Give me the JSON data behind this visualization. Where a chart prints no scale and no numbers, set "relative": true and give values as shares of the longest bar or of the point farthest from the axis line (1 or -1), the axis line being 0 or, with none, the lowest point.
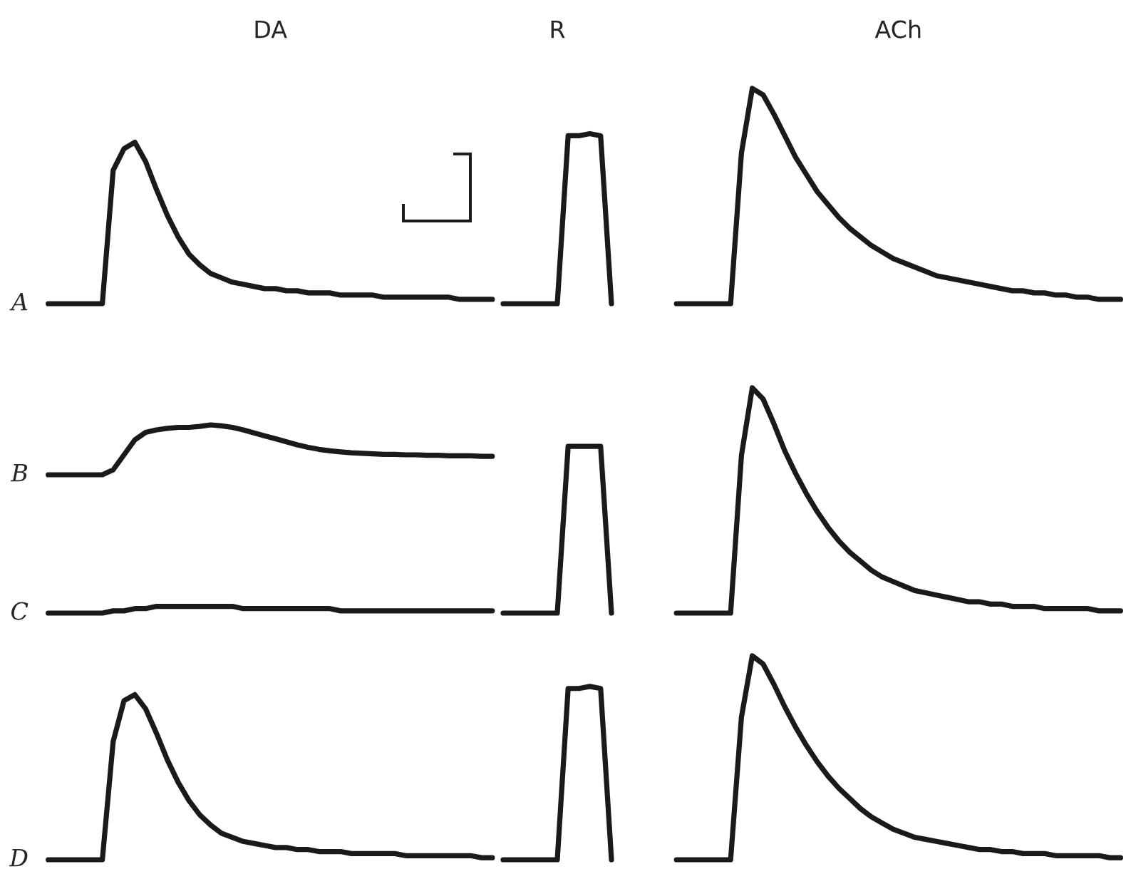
{
  "chart_data": [
    {
      "type": "line",
      "relative": true,
      "title": "A",
      "annotations": [
        "DA",
        "R",
        "ACh"
      ],
      "categories": [
        null,
        null,
        null,
        null,
        null,
        null,
        null,
        null,
        null,
        null,
        null,
        null,
        null,
        null,
        null,
        null,
        null,
        null,
        null,
        null,
        null,
        null,
        null,
        null,
        null,
        null,
        null,
        null,
        null,
        null,
        null,
        null,
        null,
        null,
        null,
        null,
        null,
        null,
        null,
        null,
        null,
        null,
        null,
        null,
        null,
        null,
        null,
        null,
        null,
        null,
        null,
        null,
        null,
        null,
        null,
        null,
        null,
        null,
        null,
        null,
        null,
        null,
        null,
        null,
        null,
        null,
        null,
        null,
        null,
        null,
        null,
        null,
        null,
        null,
        null,
        null,
        null,
        null,
        null,
        null,
        null,
        null,
        null,
        null,
        null,
        null,
        null,
        null,
        null,
        null,
        null,
        null,
        null,
        null,
        null,
        null,
        null,
        null,
        null,
        null
      ],
      "series": [
        {
          "color": "#1a1a1a",
          "values": [
            0,
            0,
            0,
            0,
            0,
            0,
            0.62,
            0.72,
            0.75,
            0.66,
            0.53,
            0.41,
            0.31,
            0.23,
            0.18,
            0.14,
            0.12,
            0.1,
            0.09,
            0.08,
            0.07,
            0.07,
            0.06,
            0.06,
            0.05,
            0.05,
            0.05,
            0.04,
            0.04,
            0.04,
            0.04,
            0.03,
            0.03,
            0.03,
            0.03,
            0.03,
            0.03,
            0.03,
            0.02,
            0.02,
            0.02,
            0.02,
            null,
            null,
            null,
            null,
            null,
            null,
            null,
            null,
            null,
            null,
            null,
            null,
            null,
            null,
            null,
            null,
            null,
            null,
            null,
            null,
            null,
            null,
            null,
            null,
            null,
            null,
            null,
            null,
            null,
            null,
            null,
            null,
            null,
            null,
            null,
            null,
            null,
            null,
            null,
            null,
            null,
            null,
            null,
            null,
            null,
            null,
            null,
            null,
            null,
            null,
            null,
            null,
            null,
            null,
            null,
            null,
            null,
            null
          ]
        },
        {
          "color": "#1a1a1a",
          "values": [
            null,
            null,
            null,
            null,
            null,
            null,
            null,
            null,
            null,
            null,
            null,
            null,
            null,
            null,
            null,
            null,
            null,
            null,
            null,
            null,
            null,
            null,
            null,
            null,
            null,
            null,
            null,
            null,
            null,
            null,
            null,
            null,
            null,
            null,
            null,
            null,
            null,
            null,
            null,
            null,
            null,
            null,
            0,
            0,
            0,
            0,
            0,
            0,
            0.78,
            0.78,
            0.79,
            0.78,
            0,
            null,
            null,
            null,
            null,
            null,
            null,
            null,
            null,
            null,
            null,
            null,
            null,
            null,
            null,
            null,
            null,
            null,
            null,
            null,
            null,
            null,
            null,
            null,
            null,
            null,
            null,
            null,
            null,
            null,
            null,
            null,
            null,
            null,
            null,
            null,
            null,
            null,
            null,
            null,
            null,
            null,
            null,
            null,
            null,
            null,
            null,
            null
          ]
        },
        {
          "color": "#1a1a1a",
          "values": [
            null,
            null,
            null,
            null,
            null,
            null,
            null,
            null,
            null,
            null,
            null,
            null,
            null,
            null,
            null,
            null,
            null,
            null,
            null,
            null,
            null,
            null,
            null,
            null,
            null,
            null,
            null,
            null,
            null,
            null,
            null,
            null,
            null,
            null,
            null,
            null,
            null,
            null,
            null,
            null,
            null,
            null,
            null,
            null,
            null,
            null,
            null,
            null,
            null,
            null,
            null,
            null,
            null,
            null,
            null,
            null,
            null,
            null,
            0,
            0,
            0,
            0,
            0,
            0,
            0.7,
            1.0,
            0.97,
            0.88,
            0.78,
            0.68,
            0.6,
            0.52,
            0.46,
            0.4,
            0.35,
            0.31,
            0.27,
            0.24,
            0.21,
            0.19,
            0.17,
            0.15,
            0.13,
            0.12,
            0.11,
            0.1,
            0.09,
            0.08,
            0.07,
            0.06,
            0.06,
            0.05,
            0.05,
            0.04,
            0.04,
            0.03,
            0.03,
            0.02,
            0.02,
            0.02
          ]
        }
      ]
    },
    {
      "type": "line",
      "relative": true,
      "title": "B",
      "categories": [
        null,
        null,
        null,
        null,
        null,
        null,
        null,
        null,
        null,
        null,
        null,
        null,
        null,
        null,
        null,
        null,
        null,
        null,
        null,
        null,
        null,
        null,
        null,
        null,
        null,
        null,
        null,
        null,
        null,
        null,
        null,
        null,
        null,
        null,
        null,
        null,
        null,
        null,
        null,
        null,
        null,
        null,
        null,
        null,
        null,
        null,
        null,
        null,
        null,
        null,
        null,
        null,
        null,
        null,
        null,
        null,
        null,
        null,
        null,
        null,
        null,
        null,
        null,
        null,
        null,
        null,
        null,
        null,
        null,
        null,
        null,
        null,
        null,
        null,
        null,
        null,
        null,
        null,
        null,
        null,
        null,
        null,
        null,
        null,
        null,
        null,
        null,
        null,
        null,
        null,
        null,
        null,
        null,
        null,
        null,
        null,
        null,
        null,
        null,
        null
      ],
      "series": [
        {
          "color": "#1a1a1a",
          "values": [
            0,
            0,
            0,
            0,
            0,
            0,
            0.1,
            0.4,
            0.7,
            0.85,
            0.9,
            0.93,
            0.95,
            0.95,
            0.97,
            1.0,
            0.98,
            0.95,
            0.9,
            0.84,
            0.78,
            0.72,
            0.66,
            0.6,
            0.55,
            0.51,
            0.48,
            0.46,
            0.44,
            0.43,
            0.42,
            0.41,
            0.41,
            0.4,
            0.4,
            0.39,
            0.39,
            0.38,
            0.38,
            0.38,
            0.37,
            0.37,
            null,
            null,
            null,
            null,
            null,
            null,
            null,
            null,
            null,
            null,
            null,
            null,
            null,
            null,
            null,
            null,
            null,
            null,
            null,
            null,
            null,
            null,
            null,
            null,
            null,
            null,
            null,
            null,
            null,
            null,
            null,
            null,
            null,
            null,
            null,
            null,
            null,
            null,
            null,
            null,
            null,
            null,
            null,
            null,
            null,
            null,
            null,
            null,
            null,
            null,
            null,
            null,
            null,
            null,
            null,
            null,
            null,
            null
          ]
        }
      ]
    },
    {
      "type": "line",
      "relative": true,
      "title": "C",
      "categories": [
        null,
        null,
        null,
        null,
        null,
        null,
        null,
        null,
        null,
        null,
        null,
        null,
        null,
        null,
        null,
        null,
        null,
        null,
        null,
        null,
        null,
        null,
        null,
        null,
        null,
        null,
        null,
        null,
        null,
        null,
        null,
        null,
        null,
        null,
        null,
        null,
        null,
        null,
        null,
        null,
        null,
        null,
        null,
        null,
        null,
        null,
        null,
        null,
        null,
        null,
        null,
        null,
        null,
        null,
        null,
        null,
        null,
        null,
        null,
        null,
        null,
        null,
        null,
        null,
        null,
        null,
        null,
        null,
        null,
        null,
        null,
        null,
        null,
        null,
        null,
        null,
        null,
        null,
        null,
        null,
        null,
        null,
        null,
        null,
        null,
        null,
        null,
        null,
        null,
        null,
        null,
        null,
        null,
        null,
        null,
        null,
        null,
        null,
        null,
        null
      ],
      "series": [
        {
          "color": "#1a1a1a",
          "values": [
            0,
            0,
            0,
            0,
            0,
            0,
            0.01,
            0.01,
            0.02,
            0.02,
            0.03,
            0.03,
            0.03,
            0.03,
            0.03,
            0.03,
            0.03,
            0.03,
            0.02,
            0.02,
            0.02,
            0.02,
            0.02,
            0.02,
            0.02,
            0.02,
            0.02,
            0.01,
            0.01,
            0.01,
            0.01,
            0.01,
            0.01,
            0.01,
            0.01,
            0.01,
            0.01,
            0.01,
            0.01,
            0.01,
            0.01,
            0.01,
            null,
            null,
            null,
            null,
            null,
            null,
            null,
            null,
            null,
            null,
            null,
            null,
            null,
            null,
            null,
            null,
            null,
            null,
            null,
            null,
            null,
            null,
            null,
            null,
            null,
            null,
            null,
            null,
            null,
            null,
            null,
            null,
            null,
            null,
            null,
            null,
            null,
            null,
            null,
            null,
            null,
            null,
            null,
            null,
            null,
            null,
            null,
            null,
            null,
            null,
            null,
            null,
            null,
            null,
            null,
            null,
            null,
            null
          ]
        },
        {
          "color": "#1a1a1a",
          "values": [
            null,
            null,
            null,
            null,
            null,
            null,
            null,
            null,
            null,
            null,
            null,
            null,
            null,
            null,
            null,
            null,
            null,
            null,
            null,
            null,
            null,
            null,
            null,
            null,
            null,
            null,
            null,
            null,
            null,
            null,
            null,
            null,
            null,
            null,
            null,
            null,
            null,
            null,
            null,
            null,
            null,
            null,
            0,
            0,
            0,
            0,
            0,
            0,
            0.74,
            0.74,
            0.74,
            0.74,
            0,
            null,
            null,
            null,
            null,
            null,
            null,
            null,
            null,
            null,
            null,
            null,
            null,
            null,
            null,
            null,
            null,
            null,
            null,
            null,
            null,
            null,
            null,
            null,
            null,
            null,
            null,
            null,
            null,
            null,
            null,
            null,
            null,
            null,
            null,
            null,
            null,
            null,
            null,
            null,
            null,
            null,
            null,
            null,
            null,
            null,
            null,
            null
          ]
        },
        {
          "color": "#1a1a1a",
          "values": [
            null,
            null,
            null,
            null,
            null,
            null,
            null,
            null,
            null,
            null,
            null,
            null,
            null,
            null,
            null,
            null,
            null,
            null,
            null,
            null,
            null,
            null,
            null,
            null,
            null,
            null,
            null,
            null,
            null,
            null,
            null,
            null,
            null,
            null,
            null,
            null,
            null,
            null,
            null,
            null,
            null,
            null,
            null,
            null,
            null,
            null,
            null,
            null,
            null,
            null,
            null,
            null,
            null,
            null,
            null,
            null,
            null,
            null,
            0,
            0,
            0,
            0,
            0,
            0,
            0.7,
            1.0,
            0.95,
            0.84,
            0.72,
            0.62,
            0.53,
            0.45,
            0.38,
            0.32,
            0.27,
            0.23,
            0.19,
            0.16,
            0.14,
            0.12,
            0.1,
            0.09,
            0.08,
            0.07,
            0.06,
            0.05,
            0.05,
            0.04,
            0.04,
            0.03,
            0.03,
            0.03,
            0.02,
            0.02,
            0.02,
            0.02,
            0.02,
            0.01,
            0.01,
            0.01
          ]
        }
      ]
    },
    {
      "type": "line",
      "relative": true,
      "title": "D",
      "categories": [
        null,
        null,
        null,
        null,
        null,
        null,
        null,
        null,
        null,
        null,
        null,
        null,
        null,
        null,
        null,
        null,
        null,
        null,
        null,
        null,
        null,
        null,
        null,
        null,
        null,
        null,
        null,
        null,
        null,
        null,
        null,
        null,
        null,
        null,
        null,
        null,
        null,
        null,
        null,
        null,
        null,
        null,
        null,
        null,
        null,
        null,
        null,
        null,
        null,
        null,
        null,
        null,
        null,
        null,
        null,
        null,
        null,
        null,
        null,
        null,
        null,
        null,
        null,
        null,
        null,
        null,
        null,
        null,
        null,
        null,
        null,
        null,
        null,
        null,
        null,
        null,
        null,
        null,
        null,
        null,
        null,
        null,
        null,
        null,
        null,
        null,
        null,
        null,
        null,
        null,
        null,
        null,
        null,
        null,
        null,
        null,
        null,
        null,
        null,
        null
      ],
      "series": [
        {
          "color": "#1a1a1a",
          "values": [
            0,
            0,
            0,
            0,
            0,
            0,
            0.58,
            0.78,
            0.81,
            0.74,
            0.62,
            0.49,
            0.38,
            0.29,
            0.22,
            0.17,
            0.13,
            0.11,
            0.09,
            0.08,
            0.07,
            0.06,
            0.06,
            0.05,
            0.05,
            0.04,
            0.04,
            0.04,
            0.03,
            0.03,
            0.03,
            0.03,
            0.03,
            0.02,
            0.02,
            0.02,
            0.02,
            0.02,
            0.02,
            0.02,
            0.01,
            0.01,
            null,
            null,
            null,
            null,
            null,
            null,
            null,
            null,
            null,
            null,
            null,
            null,
            null,
            null,
            null,
            null,
            null,
            null,
            null,
            null,
            null,
            null,
            null,
            null,
            null,
            null,
            null,
            null,
            null,
            null,
            null,
            null,
            null,
            null,
            null,
            null,
            null,
            null,
            null,
            null,
            null,
            null,
            null,
            null,
            null,
            null,
            null,
            null,
            null,
            null,
            null,
            null,
            null,
            null,
            null,
            null,
            null,
            null
          ]
        },
        {
          "color": "#1a1a1a",
          "values": [
            null,
            null,
            null,
            null,
            null,
            null,
            null,
            null,
            null,
            null,
            null,
            null,
            null,
            null,
            null,
            null,
            null,
            null,
            null,
            null,
            null,
            null,
            null,
            null,
            null,
            null,
            null,
            null,
            null,
            null,
            null,
            null,
            null,
            null,
            null,
            null,
            null,
            null,
            null,
            null,
            null,
            null,
            0,
            0,
            0,
            0,
            0,
            0,
            0.84,
            0.84,
            0.85,
            0.84,
            0,
            null,
            null,
            null,
            null,
            null,
            null,
            null,
            null,
            null,
            null,
            null,
            null,
            null,
            null,
            null,
            null,
            null,
            null,
            null,
            null,
            null,
            null,
            null,
            null,
            null,
            null,
            null,
            null,
            null,
            null,
            null,
            null,
            null,
            null,
            null,
            null,
            null,
            null,
            null,
            null,
            null,
            null,
            null,
            null,
            null,
            null,
            null
          ]
        },
        {
          "color": "#1a1a1a",
          "values": [
            null,
            null,
            null,
            null,
            null,
            null,
            null,
            null,
            null,
            null,
            null,
            null,
            null,
            null,
            null,
            null,
            null,
            null,
            null,
            null,
            null,
            null,
            null,
            null,
            null,
            null,
            null,
            null,
            null,
            null,
            null,
            null,
            null,
            null,
            null,
            null,
            null,
            null,
            null,
            null,
            null,
            null,
            null,
            null,
            null,
            null,
            null,
            null,
            null,
            null,
            null,
            null,
            null,
            null,
            null,
            null,
            null,
            null,
            0,
            0,
            0,
            0,
            0,
            0,
            0.7,
            1.0,
            0.96,
            0.86,
            0.75,
            0.65,
            0.56,
            0.48,
            0.41,
            0.35,
            0.3,
            0.25,
            0.21,
            0.18,
            0.15,
            0.13,
            0.11,
            0.1,
            0.09,
            0.08,
            0.07,
            0.06,
            0.05,
            0.05,
            0.04,
            0.04,
            0.03,
            0.03,
            0.03,
            0.02,
            0.02,
            0.02,
            0.02,
            0.02,
            0.01,
            0.01
          ]
        }
      ]
    }
  ]
}
